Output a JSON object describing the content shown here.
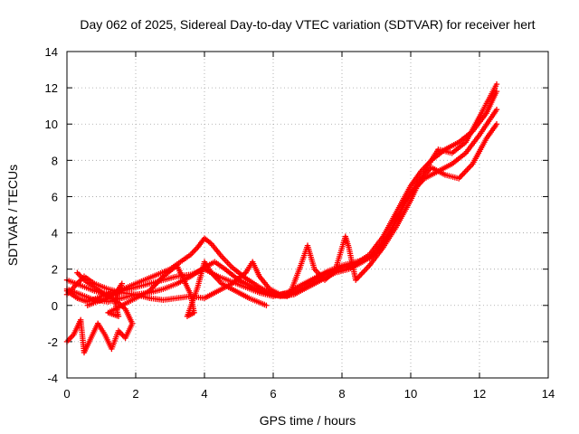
{
  "chart_data": {
    "type": "scatter",
    "title": "Day 062 of 2025, Sidereal Day-to-day VTEC variation (SDTVAR) for receiver hert",
    "xlabel": "GPS time / hours",
    "ylabel": "SDTVAR / TECUs",
    "xlim": [
      0,
      14
    ],
    "ylim": [
      -4,
      14
    ],
    "xticks": [
      "0",
      "2",
      "4",
      "6",
      "8",
      "10",
      "12",
      "14"
    ],
    "yticks": [
      "-4",
      "-2",
      "0",
      "2",
      "4",
      "6",
      "8",
      "10",
      "12",
      "14"
    ],
    "grid": true,
    "marker": "plus",
    "color": "#ff0000",
    "series": [
      {
        "points": [
          [
            0.0,
            0.8
          ],
          [
            0.3,
            0.4
          ],
          [
            0.6,
            0.2
          ],
          [
            1.0,
            0.5
          ],
          [
            1.5,
            0.8
          ],
          [
            2.0,
            1.2
          ],
          [
            2.5,
            1.6
          ],
          [
            3.0,
            2.0
          ],
          [
            3.3,
            2.4
          ],
          [
            3.6,
            2.8
          ],
          [
            3.8,
            3.2
          ],
          [
            4.0,
            3.7
          ],
          [
            4.2,
            3.4
          ],
          [
            4.5,
            2.7
          ],
          [
            4.8,
            2.1
          ],
          [
            5.2,
            1.5
          ],
          [
            5.6,
            1.0
          ],
          [
            6.0,
            0.6
          ],
          [
            6.4,
            0.5
          ],
          [
            6.8,
            0.9
          ],
          [
            7.2,
            1.4
          ],
          [
            7.6,
            1.8
          ],
          [
            8.0,
            2.1
          ],
          [
            8.4,
            2.3
          ],
          [
            8.8,
            2.8
          ],
          [
            9.2,
            3.8
          ],
          [
            9.6,
            5.2
          ],
          [
            10.0,
            6.6
          ],
          [
            10.3,
            7.4
          ],
          [
            10.6,
            8.0
          ],
          [
            11.0,
            8.6
          ],
          [
            11.4,
            9.0
          ],
          [
            11.8,
            9.6
          ],
          [
            12.2,
            10.6
          ],
          [
            12.5,
            11.8
          ]
        ]
      },
      {
        "points": [
          [
            0.0,
            1.4
          ],
          [
            0.4,
            1.1
          ],
          [
            0.8,
            0.8
          ],
          [
            1.2,
            0.6
          ],
          [
            1.6,
            0.8
          ],
          [
            2.0,
            1.0
          ],
          [
            2.4,
            1.2
          ],
          [
            2.8,
            1.4
          ],
          [
            3.2,
            1.6
          ],
          [
            3.6,
            1.7
          ],
          [
            4.0,
            2.0
          ],
          [
            4.4,
            1.6
          ],
          [
            4.8,
            1.3
          ],
          [
            5.2,
            1.0
          ],
          [
            5.6,
            0.7
          ],
          [
            6.0,
            0.5
          ],
          [
            6.4,
            0.7
          ],
          [
            6.8,
            1.1
          ],
          [
            7.2,
            1.5
          ],
          [
            7.6,
            1.9
          ],
          [
            8.0,
            2.2
          ],
          [
            8.4,
            2.4
          ],
          [
            8.8,
            2.6
          ],
          [
            9.2,
            3.4
          ],
          [
            9.6,
            4.8
          ],
          [
            10.0,
            6.2
          ],
          [
            10.4,
            7.0
          ],
          [
            10.8,
            7.4
          ],
          [
            11.2,
            7.8
          ],
          [
            11.6,
            8.4
          ],
          [
            12.0,
            9.4
          ],
          [
            12.5,
            10.8
          ]
        ]
      },
      {
        "points": [
          [
            0.0,
            0.9
          ],
          [
            0.4,
            0.6
          ],
          [
            0.8,
            0.3
          ],
          [
            1.2,
            0.2
          ],
          [
            1.6,
            0.4
          ],
          [
            2.0,
            0.6
          ],
          [
            2.4,
            0.7
          ],
          [
            2.8,
            0.9
          ],
          [
            3.2,
            1.2
          ],
          [
            3.6,
            1.6
          ],
          [
            4.0,
            2.1
          ],
          [
            4.3,
            2.4
          ],
          [
            4.6,
            2.0
          ],
          [
            5.0,
            1.4
          ],
          [
            5.4,
            1.0
          ],
          [
            5.8,
            0.7
          ],
          [
            6.2,
            0.5
          ],
          [
            6.6,
            0.6
          ],
          [
            7.0,
            1.0
          ],
          [
            7.4,
            1.4
          ],
          [
            7.8,
            1.8
          ],
          [
            8.2,
            2.0
          ],
          [
            8.6,
            2.4
          ],
          [
            9.0,
            2.9
          ],
          [
            9.4,
            4.0
          ],
          [
            9.8,
            5.6
          ],
          [
            10.2,
            6.8
          ],
          [
            10.6,
            7.6
          ],
          [
            11.0,
            7.2
          ],
          [
            11.4,
            7.0
          ],
          [
            11.8,
            7.8
          ],
          [
            12.2,
            9.2
          ],
          [
            12.5,
            10.0
          ]
        ]
      },
      {
        "points": [
          [
            0.0,
            0.6
          ],
          [
            0.3,
            1.2
          ],
          [
            0.5,
            1.6
          ],
          [
            0.8,
            1.2
          ],
          [
            1.2,
            0.9
          ],
          [
            1.6,
            0.7
          ],
          [
            2.0,
            0.6
          ],
          [
            2.4,
            0.4
          ],
          [
            2.8,
            0.3
          ],
          [
            3.2,
            0.4
          ],
          [
            3.6,
            0.5
          ],
          [
            4.0,
            0.4
          ],
          [
            4.4,
            0.8
          ],
          [
            4.8,
            1.2
          ],
          [
            5.2,
            1.8
          ],
          [
            5.4,
            2.4
          ],
          [
            5.6,
            1.6
          ],
          [
            5.9,
            0.9
          ],
          [
            6.2,
            0.6
          ],
          [
            6.5,
            0.7
          ],
          [
            6.8,
            2.2
          ],
          [
            7.0,
            3.3
          ],
          [
            7.2,
            2.0
          ],
          [
            7.5,
            1.4
          ],
          [
            7.8,
            1.9
          ],
          [
            8.1,
            3.8
          ],
          [
            8.2,
            3.2
          ],
          [
            8.4,
            1.4
          ],
          [
            8.8,
            2.2
          ],
          [
            9.2,
            3.2
          ],
          [
            9.6,
            4.4
          ],
          [
            10.0,
            5.8
          ],
          [
            10.4,
            7.4
          ],
          [
            10.8,
            8.6
          ],
          [
            11.2,
            8.4
          ],
          [
            11.6,
            9.0
          ],
          [
            12.0,
            10.4
          ],
          [
            12.5,
            12.2
          ]
        ]
      },
      {
        "points": [
          [
            0.0,
            -2.0
          ],
          [
            0.2,
            -1.6
          ],
          [
            0.4,
            -0.8
          ],
          [
            0.5,
            -2.6
          ],
          [
            0.7,
            -1.8
          ],
          [
            0.9,
            -1.0
          ],
          [
            1.1,
            -1.6
          ],
          [
            1.3,
            -2.4
          ],
          [
            1.5,
            -1.4
          ],
          [
            1.7,
            -1.8
          ],
          [
            1.9,
            -1.0
          ],
          [
            1.7,
            -0.2
          ],
          [
            1.4,
            0.3
          ],
          [
            1.1,
            0.6
          ],
          [
            0.8,
            1.0
          ],
          [
            0.5,
            1.4
          ],
          [
            0.3,
            1.8
          ]
        ]
      },
      {
        "points": [
          [
            0.6,
            0.0
          ],
          [
            1.0,
            0.3
          ],
          [
            1.4,
            0.6
          ],
          [
            1.6,
            1.2
          ],
          [
            1.4,
            0.2
          ],
          [
            1.5,
            -0.6
          ],
          [
            1.2,
            -0.4
          ],
          [
            2.4,
            0.8
          ],
          [
            2.8,
            1.6
          ],
          [
            3.2,
            2.2
          ],
          [
            3.4,
            1.4
          ],
          [
            3.6,
            0.6
          ],
          [
            3.7,
            -0.4
          ],
          [
            3.5,
            -0.6
          ],
          [
            3.8,
            1.0
          ],
          [
            4.0,
            2.4
          ],
          [
            4.2,
            1.8
          ],
          [
            4.5,
            1.2
          ],
          [
            4.9,
            0.8
          ],
          [
            5.3,
            0.4
          ],
          [
            5.8,
            0.0
          ]
        ]
      }
    ]
  }
}
